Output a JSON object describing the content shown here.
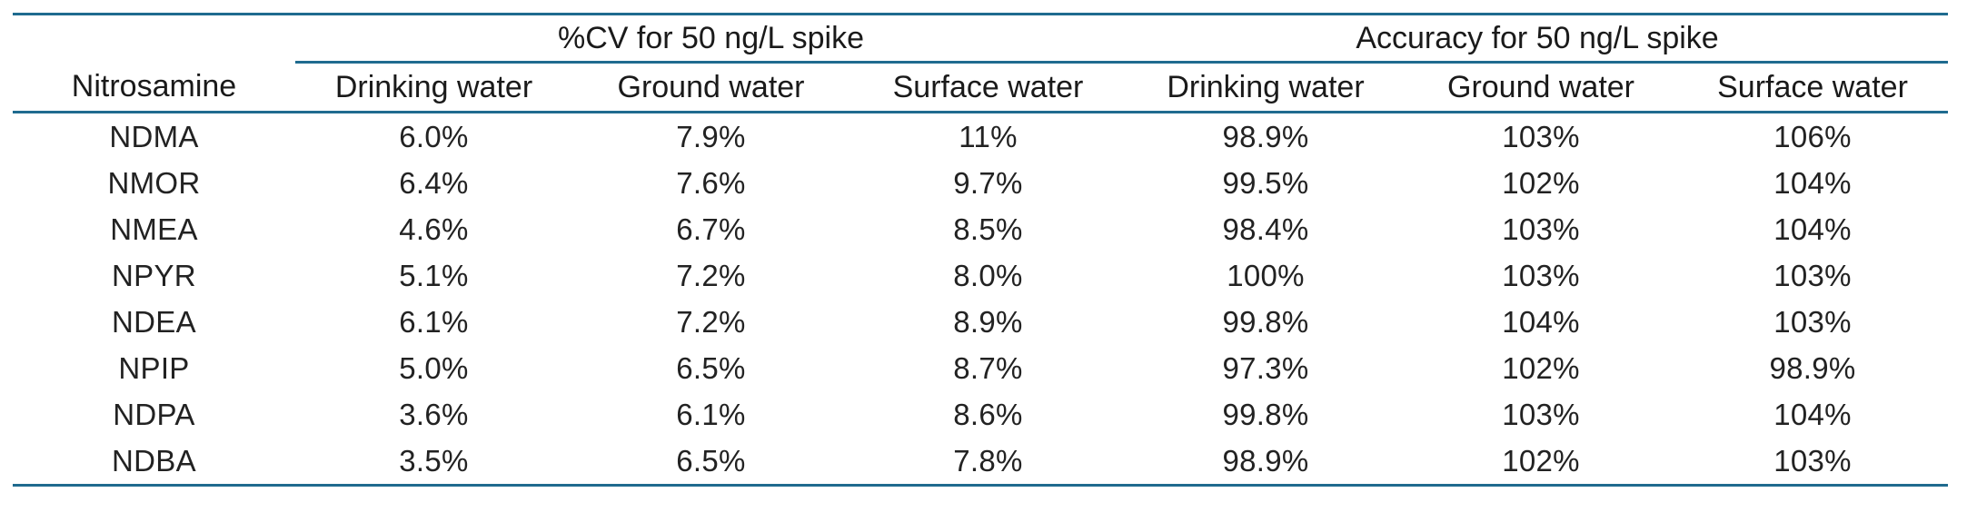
{
  "table": {
    "group_headers": {
      "cv": "%CV for 50 ng/L spike",
      "accuracy": "Accuracy for 50 ng/L spike"
    },
    "columns": [
      "Nitrosamine",
      "Drinking water",
      "Ground water",
      "Surface water",
      "Drinking water",
      "Ground water",
      "Surface water"
    ],
    "rows": [
      [
        "NDMA",
        "6.0%",
        "7.9%",
        "11%",
        "98.9%",
        "103%",
        "106%"
      ],
      [
        "NMOR",
        "6.4%",
        "7.6%",
        "9.7%",
        "99.5%",
        "102%",
        "104%"
      ],
      [
        "NMEA",
        "4.6%",
        "6.7%",
        "8.5%",
        "98.4%",
        "103%",
        "104%"
      ],
      [
        "NPYR",
        "5.1%",
        "7.2%",
        "8.0%",
        "100%",
        "103%",
        "103%"
      ],
      [
        "NDEA",
        "6.1%",
        "7.2%",
        "8.9%",
        "99.8%",
        "104%",
        "103%"
      ],
      [
        "NPIP",
        "5.0%",
        "6.5%",
        "8.7%",
        "97.3%",
        "102%",
        "98.9%"
      ],
      [
        "NDPA",
        "3.6%",
        "6.1%",
        "8.6%",
        "99.8%",
        "103%",
        "104%"
      ],
      [
        "NDBA",
        "3.5%",
        "6.5%",
        "7.8%",
        "98.9%",
        "102%",
        "103%"
      ]
    ]
  },
  "colors": {
    "rule": "#1f6b8f",
    "text": "#1a1a1a"
  }
}
